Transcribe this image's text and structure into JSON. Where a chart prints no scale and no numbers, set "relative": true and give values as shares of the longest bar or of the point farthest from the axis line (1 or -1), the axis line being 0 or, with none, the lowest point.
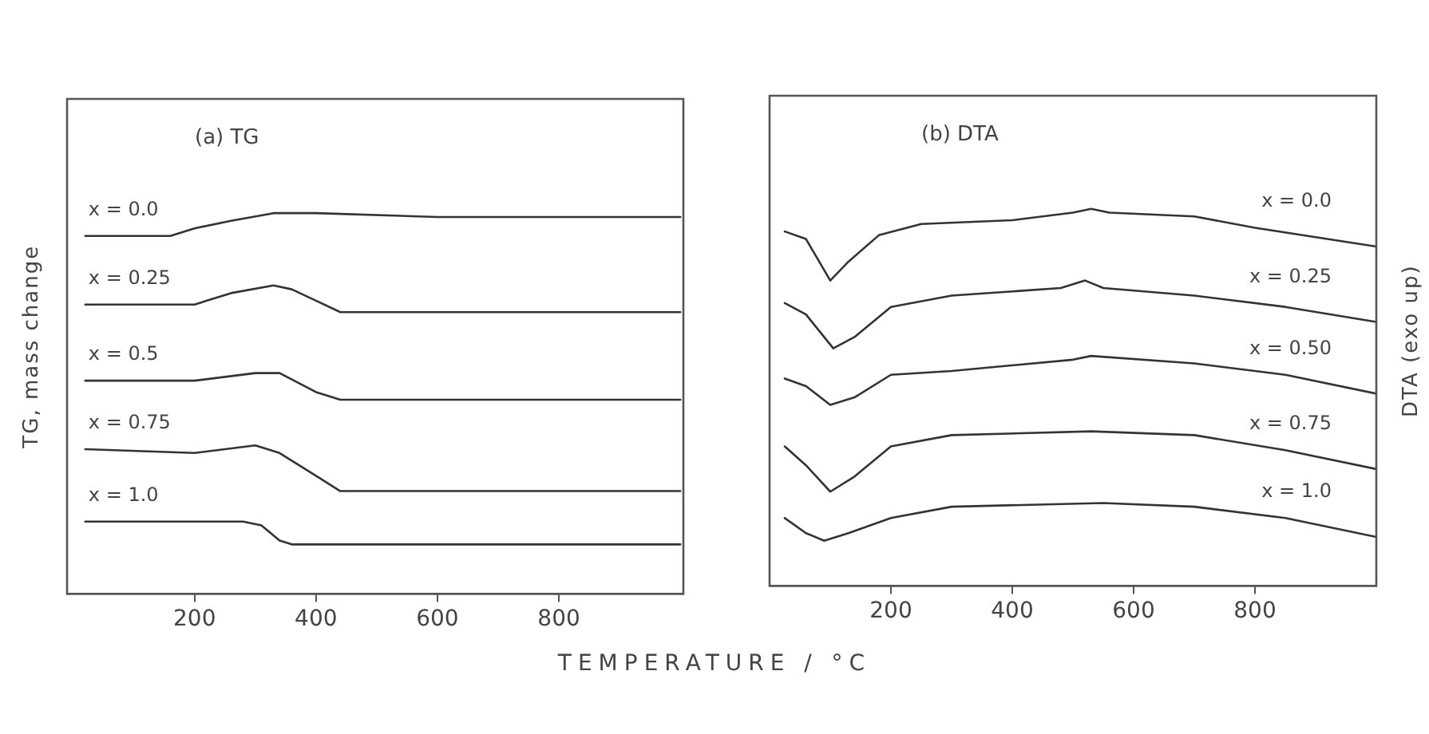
{
  "chart_data": [
    {
      "type": "line",
      "title": "(a) TG",
      "ylabel": "TG, mass change",
      "xlabel": "TEMPERATURE / °C",
      "relative": true,
      "xlim": [
        -10,
        1005
      ],
      "xticks": [
        200,
        400,
        600,
        800
      ],
      "grid": false,
      "legend": false,
      "marker": "none",
      "line_style": "solid",
      "series": [
        {
          "name": "x = 0.0",
          "color": "#333333",
          "x": [
            20,
            160,
            200,
            260,
            330,
            400,
            600,
            800,
            1000
          ],
          "values": [
            0.94,
            0.94,
            0.96,
            0.98,
            1.0,
            1.0,
            0.99,
            0.99,
            0.99
          ]
        },
        {
          "name": "x = 0.25",
          "color": "#333333",
          "x": [
            20,
            200,
            260,
            330,
            360,
            400,
            440,
            1000
          ],
          "values": [
            0.76,
            0.76,
            0.79,
            0.81,
            0.8,
            0.77,
            0.74,
            0.74
          ]
        },
        {
          "name": "x = 0.5",
          "color": "#333333",
          "x": [
            20,
            200,
            300,
            340,
            400,
            440,
            1000
          ],
          "values": [
            0.56,
            0.56,
            0.58,
            0.58,
            0.53,
            0.51,
            0.51
          ]
        },
        {
          "name": "x = 0.75",
          "color": "#333333",
          "x": [
            20,
            200,
            300,
            340,
            400,
            440,
            1000
          ],
          "values": [
            0.38,
            0.37,
            0.39,
            0.37,
            0.31,
            0.27,
            0.27
          ]
        },
        {
          "name": "x = 1.0",
          "color": "#333333",
          "x": [
            20,
            280,
            310,
            340,
            360,
            1000
          ],
          "values": [
            0.19,
            0.19,
            0.18,
            0.14,
            0.13,
            0.13
          ]
        }
      ]
    },
    {
      "type": "line",
      "title": "(b) DTA",
      "ylabel": "DTA (exo up)",
      "relative": true,
      "xlim": [
        0,
        1000
      ],
      "xticks": [
        200,
        400,
        600,
        800
      ],
      "grid": false,
      "legend": false,
      "marker": "none",
      "line_style": "solid",
      "series": [
        {
          "name": "x = 0.0",
          "color": "#333333",
          "x": [
            25,
            60,
            100,
            130,
            180,
            250,
            400,
            500,
            530,
            560,
            700,
            800,
            1000
          ],
          "values": [
            0.94,
            0.92,
            0.81,
            0.86,
            0.93,
            0.96,
            0.97,
            0.99,
            1.0,
            0.99,
            0.98,
            0.95,
            0.9
          ]
        },
        {
          "name": "x = 0.25",
          "color": "#333333",
          "x": [
            25,
            60,
            105,
            140,
            200,
            300,
            480,
            520,
            550,
            700,
            850,
            1000
          ],
          "values": [
            0.75,
            0.72,
            0.63,
            0.66,
            0.74,
            0.77,
            0.79,
            0.81,
            0.79,
            0.77,
            0.74,
            0.7
          ]
        },
        {
          "name": "x = 0.50",
          "color": "#333333",
          "x": [
            25,
            60,
            100,
            140,
            200,
            300,
            500,
            530,
            700,
            850,
            1000
          ],
          "values": [
            0.55,
            0.53,
            0.48,
            0.5,
            0.56,
            0.57,
            0.6,
            0.61,
            0.59,
            0.56,
            0.51
          ]
        },
        {
          "name": "x = 0.75",
          "color": "#333333",
          "x": [
            25,
            60,
            100,
            140,
            200,
            300,
            530,
            700,
            850,
            1000
          ],
          "values": [
            0.37,
            0.32,
            0.25,
            0.29,
            0.37,
            0.4,
            0.41,
            0.4,
            0.36,
            0.31
          ]
        },
        {
          "name": "x = 1.0",
          "color": "#333333",
          "x": [
            25,
            60,
            90,
            130,
            200,
            300,
            550,
            700,
            850,
            1000
          ],
          "values": [
            0.18,
            0.14,
            0.12,
            0.14,
            0.18,
            0.21,
            0.22,
            0.21,
            0.18,
            0.13
          ]
        }
      ]
    }
  ]
}
